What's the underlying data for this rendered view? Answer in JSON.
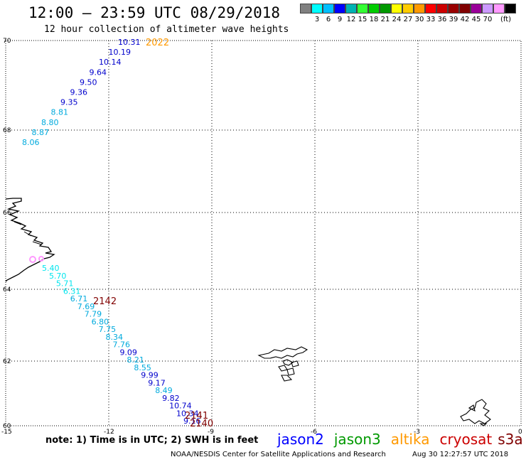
{
  "header": {
    "title": "12:00 – 23:59 UTC 08/29/2018",
    "subtitle": "12 hour collection of altimeter wave heights"
  },
  "colorbar": {
    "colors": [
      "#808080",
      "#00ffff",
      "#00bfff",
      "#0000ff",
      "#00b2b2",
      "#33ff33",
      "#00cc00",
      "#009900",
      "#ffff00",
      "#ffcc00",
      "#ff9900",
      "#ff0000",
      "#cc0000",
      "#990000",
      "#800000",
      "#990099",
      "#cc99ff",
      "#ff99ff",
      "#000000"
    ],
    "labels": [
      "3",
      "6",
      "9",
      "12",
      "15",
      "18",
      "21",
      "24",
      "27",
      "30",
      "33",
      "36",
      "39",
      "42",
      "45",
      "70"
    ],
    "unit": "(ft)"
  },
  "axes": {
    "lon_ticks": [
      "-15",
      "-12",
      "-9",
      "-6",
      "-3",
      "0"
    ],
    "lat_ticks": [
      "70",
      "68",
      "66",
      "64",
      "62",
      "60"
    ]
  },
  "passes": [
    {
      "label": "2022",
      "color": "#ff9900"
    },
    {
      "label": "2142",
      "color": "#800000"
    },
    {
      "label": "2141",
      "color": "#800000"
    },
    {
      "label": "2140",
      "color": "#800000"
    }
  ],
  "track_north": {
    "values": [
      "10.31",
      "10.19",
      "10.14",
      "9.64",
      "9.50",
      "9.36",
      "9.35",
      "8.81",
      "8.80",
      "8.87",
      "8.06"
    ],
    "colors": [
      "#0000cc",
      "#0000cc",
      "#0000cc",
      "#0000cc",
      "#0000cc",
      "#0000cc",
      "#0000cc",
      "#00aadd",
      "#00aadd",
      "#00aadd",
      "#00aadd"
    ]
  },
  "track_south": {
    "values": [
      "5.40",
      "5.70",
      "5.71",
      "6.31",
      "6.71",
      "7.69",
      "7.79",
      "6.80",
      "7.75",
      "8.34",
      "7.76",
      "9.09",
      "8.21",
      "8.55",
      "9.99",
      "9.17",
      "8.49",
      "9.82",
      "10.74",
      "10.34",
      "9.16"
    ],
    "colors": [
      "#00e5ee",
      "#00e5ee",
      "#00e5ee",
      "#00e5ee",
      "#00aadd",
      "#00aadd",
      "#00aadd",
      "#00aadd",
      "#00aadd",
      "#00aadd",
      "#00aadd",
      "#0000cc",
      "#00aadd",
      "#00aadd",
      "#0000cc",
      "#0000cc",
      "#00aadd",
      "#0000cc",
      "#0000cc",
      "#0000cc",
      "#0000cc"
    ]
  },
  "note": "note:  1) Time is in UTC;  2) SWH is in feet",
  "legend": [
    {
      "name": "jason2",
      "color": "#0000ff"
    },
    {
      "name": "jason3",
      "color": "#009900"
    },
    {
      "name": "altika",
      "color": "#ff9900"
    },
    {
      "name": "cryosat",
      "color": "#cc0000"
    },
    {
      "name": "s3a",
      "color": "#800000"
    }
  ],
  "credit": "NOAA/NESDIS Center for Satellite Applications and Research",
  "timestamp": "Aug 30 12:27:57 UTC 2018"
}
